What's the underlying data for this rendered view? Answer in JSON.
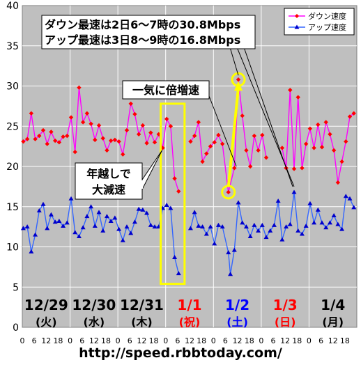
{
  "chart_data": {
    "type": "line",
    "ylim": [
      0,
      40
    ],
    "yticks": [
      0,
      5,
      10,
      15,
      20,
      25,
      30,
      35,
      40
    ],
    "x_hours_per_day": 24,
    "hour_tick_labels": [
      "0",
      "6",
      "12",
      "18"
    ],
    "days": [
      {
        "date": "12/29",
        "weekday": "(火)",
        "color": "#000000"
      },
      {
        "date": "12/30",
        "weekday": "(水)",
        "color": "#000000"
      },
      {
        "date": "12/31",
        "weekday": "(木)",
        "color": "#000000"
      },
      {
        "date": "1/1",
        "weekday": "(祝)",
        "color": "#ff0000"
      },
      {
        "date": "1/2",
        "weekday": "(土)",
        "color": "#0000ff"
      },
      {
        "date": "1/3",
        "weekday": "(日)",
        "color": "#ff0000"
      },
      {
        "date": "1/4",
        "weekday": "(月)",
        "color": "#000000"
      }
    ],
    "legend": {
      "position": "top-right"
    },
    "series": [
      {
        "name": "ダウン速度",
        "color": "#ff00ff",
        "marker_color": "#ff0000",
        "marker": "diamond",
        "points": [
          [
            0.5,
            23.1
          ],
          [
            2.5,
            23.4
          ],
          [
            4.5,
            26.6
          ],
          [
            6.5,
            23.4
          ],
          [
            8.5,
            23.8
          ],
          [
            10.5,
            24.5
          ],
          [
            12.5,
            22.8
          ],
          [
            14.5,
            24.3
          ],
          [
            16.5,
            23.2
          ],
          [
            18.5,
            23.0
          ],
          [
            20.5,
            23.7
          ],
          [
            22.5,
            23.8
          ],
          [
            24.5,
            26.1
          ],
          [
            26.5,
            21.8
          ],
          [
            28.5,
            29.8
          ],
          [
            30.5,
            25.5
          ],
          [
            32.5,
            26.6
          ],
          [
            34.5,
            25.3
          ],
          [
            36.5,
            23.3
          ],
          [
            38.5,
            25.1
          ],
          [
            40.5,
            23.5
          ],
          [
            42.5,
            22.0
          ],
          [
            44.5,
            23.2
          ],
          [
            46.5,
            23.3
          ],
          [
            48.5,
            23.1
          ],
          [
            50.5,
            21.5
          ],
          [
            52.5,
            24.5
          ],
          [
            54.5,
            27.8
          ],
          [
            56.5,
            26.5
          ],
          [
            58.5,
            24.0
          ],
          [
            60.5,
            25.1
          ],
          [
            62.5,
            22.9
          ],
          [
            64.5,
            24.2
          ],
          [
            66.5,
            23.0
          ],
          [
            68.5,
            24.0
          ],
          [
            70.5,
            22.3
          ],
          [
            72.5,
            25.9
          ],
          [
            74.5,
            25.0
          ],
          [
            76.5,
            18.5
          ],
          [
            78.5,
            16.9
          ],
          [
            84.5,
            23.1
          ],
          [
            86.5,
            23.8
          ],
          [
            88.5,
            25.5
          ],
          [
            90.5,
            20.6
          ],
          [
            92.5,
            21.6
          ],
          [
            94.5,
            22.5
          ],
          [
            96.5,
            23.0
          ],
          [
            98.5,
            23.9
          ],
          [
            100.5,
            22.8
          ],
          [
            103.5,
            16.8
          ],
          [
            106.5,
            19.8
          ],
          [
            108.5,
            30.8
          ],
          [
            110.5,
            26.3
          ],
          [
            112.5,
            22.0
          ],
          [
            114.5,
            20.0
          ],
          [
            116.5,
            23.8
          ],
          [
            118.5,
            22.0
          ],
          [
            120.5,
            23.9
          ],
          [
            122.5,
            21.1
          ],
          [
            130.5,
            22.3
          ],
          [
            132.5,
            19.8
          ],
          [
            134.5,
            29.5
          ],
          [
            136.5,
            19.7
          ],
          [
            138.5,
            28.6
          ],
          [
            140.5,
            19.8
          ],
          [
            142.5,
            22.8
          ],
          [
            144.5,
            24.7
          ],
          [
            146.5,
            22.3
          ],
          [
            148.5,
            25.2
          ],
          [
            150.5,
            22.4
          ],
          [
            152.5,
            25.5
          ],
          [
            154.5,
            24.0
          ],
          [
            156.5,
            22.0
          ],
          [
            158.5,
            18.0
          ],
          [
            160.5,
            20.6
          ],
          [
            162.5,
            23.1
          ],
          [
            164.5,
            26.2
          ],
          [
            166.5,
            26.6
          ]
        ]
      },
      {
        "name": "アップ速度",
        "color": "#3366ff",
        "marker_color": "#0000cc",
        "marker": "triangle",
        "points": [
          [
            0.5,
            12.3
          ],
          [
            2.5,
            12.5
          ],
          [
            4.5,
            9.4
          ],
          [
            6.5,
            11.5
          ],
          [
            8.5,
            14.5
          ],
          [
            10.5,
            15.3
          ],
          [
            12.5,
            12.3
          ],
          [
            14.5,
            14.0
          ],
          [
            16.5,
            13.1
          ],
          [
            18.5,
            13.2
          ],
          [
            20.5,
            12.6
          ],
          [
            22.5,
            13.0
          ],
          [
            24.5,
            16.0
          ],
          [
            26.5,
            11.8
          ],
          [
            28.5,
            11.3
          ],
          [
            30.5,
            12.4
          ],
          [
            32.5,
            13.8
          ],
          [
            34.5,
            15.0
          ],
          [
            36.5,
            12.6
          ],
          [
            38.5,
            14.3
          ],
          [
            40.5,
            12.0
          ],
          [
            42.5,
            13.8
          ],
          [
            44.5,
            13.2
          ],
          [
            46.5,
            13.6
          ],
          [
            48.5,
            12.2
          ],
          [
            50.5,
            10.8
          ],
          [
            52.5,
            12.5
          ],
          [
            54.5,
            11.7
          ],
          [
            56.5,
            13.1
          ],
          [
            58.5,
            14.7
          ],
          [
            60.5,
            14.6
          ],
          [
            62.5,
            14.2
          ],
          [
            64.5,
            12.7
          ],
          [
            66.5,
            12.5
          ],
          [
            68.5,
            12.5
          ],
          [
            70.5,
            14.8
          ],
          [
            72.5,
            15.2
          ],
          [
            74.5,
            14.8
          ],
          [
            76.5,
            8.7
          ],
          [
            78.5,
            6.7
          ],
          [
            84.5,
            12.3
          ],
          [
            86.5,
            14.3
          ],
          [
            88.5,
            12.6
          ],
          [
            90.5,
            12.5
          ],
          [
            92.5,
            11.6
          ],
          [
            94.5,
            12.5
          ],
          [
            96.5,
            10.4
          ],
          [
            98.5,
            12.7
          ],
          [
            100.5,
            12.5
          ],
          [
            103.5,
            9.3
          ],
          [
            104.5,
            6.6
          ],
          [
            106.5,
            9.6
          ],
          [
            108.5,
            15.5
          ],
          [
            110.5,
            13.0
          ],
          [
            112.5,
            12.5
          ],
          [
            114.5,
            11.3
          ],
          [
            116.5,
            12.7
          ],
          [
            118.5,
            12.0
          ],
          [
            120.5,
            12.7
          ],
          [
            122.5,
            11.2
          ],
          [
            124.5,
            12.0
          ],
          [
            126.5,
            12.7
          ],
          [
            128.5,
            15.7
          ],
          [
            130.5,
            10.9
          ],
          [
            132.5,
            12.5
          ],
          [
            134.5,
            12.8
          ],
          [
            136.5,
            16.8
          ],
          [
            138.5,
            12.0
          ],
          [
            140.5,
            11.6
          ],
          [
            142.5,
            12.6
          ],
          [
            144.5,
            15.4
          ],
          [
            146.5,
            13.0
          ],
          [
            148.5,
            14.6
          ],
          [
            150.5,
            13.0
          ],
          [
            152.5,
            12.4
          ],
          [
            154.5,
            13.0
          ],
          [
            156.5,
            13.9
          ],
          [
            158.5,
            12.8
          ],
          [
            160.5,
            12.2
          ],
          [
            162.5,
            16.3
          ],
          [
            164.5,
            16.0
          ],
          [
            166.5,
            14.9
          ]
        ]
      }
    ],
    "annotations": {
      "record_line1": "ダウン最速は2日6～7時の30.8Mbps",
      "record_line2": "アップ最速は3日8～9時の16.8Mbps",
      "double": "一気に倍増速",
      "newyear_line1": "年越しで",
      "newyear_line2": "大減速"
    },
    "source_url": "http://speed.rbbtoday.com/",
    "colors": {
      "plot_bg": "#bfbfbf",
      "grid": "#ffffff",
      "highlight_box": "#ffff00",
      "highlight_arrow": "#ffff00",
      "callout_stroke": "#000000"
    }
  }
}
